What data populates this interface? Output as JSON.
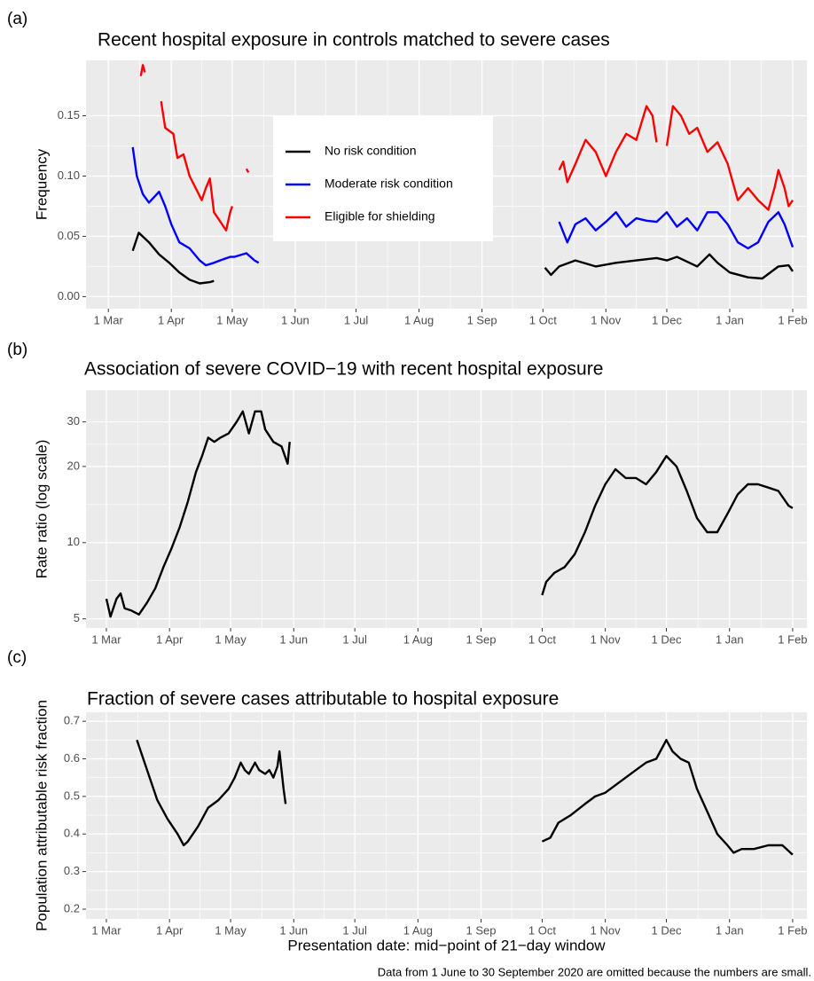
{
  "chart_data": [
    {
      "type": "line",
      "label": "(a)",
      "title": "Recent hospital exposure in controls matched to severe cases",
      "ylabel": "Frequency",
      "xlim": [
        -11,
        344
      ],
      "ylim": [
        -0.01,
        0.196
      ],
      "xticks": [
        {
          "value": 0,
          "label": "1 Mar"
        },
        {
          "value": 31,
          "label": "1 Apr"
        },
        {
          "value": 61,
          "label": "1 May"
        },
        {
          "value": 92,
          "label": "1 Jun"
        },
        {
          "value": 122,
          "label": "1 Jul"
        },
        {
          "value": 153,
          "label": "1 Aug"
        },
        {
          "value": 184,
          "label": "1 Sep"
        },
        {
          "value": 214,
          "label": "1 Oct"
        },
        {
          "value": 245,
          "label": "1 Nov"
        },
        {
          "value": 275,
          "label": "1 Dec"
        },
        {
          "value": 306,
          "label": "1 Jan"
        },
        {
          "value": 337,
          "label": "1 Feb"
        }
      ],
      "yticks": [
        {
          "value": 0,
          "label": "0.00"
        },
        {
          "value": 0.05,
          "label": "0.05"
        },
        {
          "value": 0.1,
          "label": "0.10"
        },
        {
          "value": 0.15,
          "label": "0.15"
        }
      ],
      "grid": true,
      "legend": "inside",
      "series": [
        {
          "name": "No risk condition",
          "color": "#000000",
          "x": [
            12,
            15,
            20,
            25,
            30,
            35,
            40,
            45,
            50,
            52,
            130,
            215,
            218,
            222,
            230,
            240,
            250,
            260,
            270,
            275,
            280,
            290,
            296,
            300,
            306,
            315,
            322,
            330,
            335,
            337
          ],
          "values": [
            0.038,
            0.053,
            0.045,
            0.035,
            0.028,
            0.02,
            0.014,
            0.011,
            0.012,
            0.013,
            null,
            0.024,
            0.018,
            0.025,
            0.03,
            0.025,
            0.028,
            0.03,
            0.032,
            0.03,
            0.033,
            0.025,
            0.035,
            0.028,
            0.02,
            0.016,
            0.015,
            0.025,
            0.026,
            0.021
          ]
        },
        {
          "name": "Moderate risk condition",
          "color": "#0000ff",
          "x": [
            12,
            14,
            17,
            20,
            25,
            28,
            31,
            35,
            40,
            45,
            48,
            52,
            55,
            60,
            62,
            68,
            72,
            74,
            150,
            222,
            226,
            230,
            235,
            240,
            245,
            250,
            255,
            260,
            265,
            270,
            275,
            280,
            285,
            290,
            295,
            300,
            305,
            310,
            315,
            320,
            325,
            330,
            333,
            337
          ],
          "values": [
            0.124,
            0.1,
            0.085,
            0.078,
            0.087,
            0.075,
            0.06,
            0.045,
            0.04,
            0.03,
            0.026,
            0.028,
            0.03,
            0.033,
            0.033,
            0.036,
            0.03,
            0.028,
            null,
            0.062,
            0.045,
            0.06,
            0.065,
            0.055,
            0.062,
            0.07,
            0.058,
            0.065,
            0.063,
            0.062,
            0.07,
            0.058,
            0.065,
            0.055,
            0.07,
            0.07,
            0.06,
            0.045,
            0.04,
            0.045,
            0.062,
            0.07,
            0.06,
            0.041
          ]
        },
        {
          "name": "Eligible for shielding",
          "color": "#ff0000",
          "x": [
            16,
            17,
            18,
            22,
            26,
            28,
            32,
            34,
            37,
            40,
            43,
            46,
            48,
            50,
            52,
            54,
            56,
            58,
            60,
            61,
            65,
            68,
            69,
            150,
            222,
            224,
            226,
            230,
            235,
            240,
            245,
            250,
            255,
            260,
            265,
            268,
            270,
            272,
            275,
            278,
            282,
            286,
            290,
            295,
            300,
            305,
            310,
            315,
            320,
            325,
            328,
            330,
            333,
            335,
            337
          ],
          "values": [
            0.183,
            0.192,
            0.186,
            null,
            0.162,
            0.14,
            0.135,
            0.115,
            0.118,
            0.1,
            0.09,
            0.08,
            0.09,
            0.098,
            0.07,
            0.065,
            0.06,
            0.055,
            0.07,
            0.075,
            null,
            0.106,
            0.103,
            null,
            0.105,
            0.112,
            0.095,
            0.11,
            0.13,
            0.12,
            0.1,
            0.12,
            0.135,
            0.13,
            0.158,
            0.15,
            0.128,
            null,
            0.125,
            0.158,
            0.15,
            0.135,
            0.14,
            0.12,
            0.128,
            0.11,
            0.08,
            0.09,
            0.08,
            0.072,
            0.09,
            0.105,
            0.09,
            0.075,
            0.08
          ]
        }
      ]
    },
    {
      "type": "line",
      "label": "(b)",
      "title": "Association of severe COVID−19 with recent hospital exposure",
      "ylabel": "Rate ratio (log scale)",
      "xlim": [
        -10,
        344
      ],
      "ylim": [
        4.6,
        40
      ],
      "ylog": true,
      "xticks": [
        {
          "value": 0,
          "label": "1 Mar"
        },
        {
          "value": 31,
          "label": "1 Apr"
        },
        {
          "value": 61,
          "label": "1 May"
        },
        {
          "value": 92,
          "label": "1 Jun"
        },
        {
          "value": 122,
          "label": "1 Jul"
        },
        {
          "value": 153,
          "label": "1 Aug"
        },
        {
          "value": 184,
          "label": "1 Sep"
        },
        {
          "value": 214,
          "label": "1 Oct"
        },
        {
          "value": 245,
          "label": "1 Nov"
        },
        {
          "value": 275,
          "label": "1 Dec"
        },
        {
          "value": 306,
          "label": "1 Jan"
        },
        {
          "value": 337,
          "label": "1 Feb"
        }
      ],
      "yticks": [
        5,
        10,
        20,
        30
      ],
      "grid": true,
      "color": "#000000",
      "x": [
        0,
        2,
        5,
        7,
        9,
        12,
        16,
        20,
        24,
        28,
        32,
        36,
        40,
        44,
        47,
        50,
        53,
        56,
        60,
        64,
        67,
        70,
        73,
        76,
        78,
        82,
        86,
        89,
        90,
        150,
        214,
        216,
        220,
        225,
        230,
        235,
        240,
        245,
        250,
        255,
        260,
        265,
        270,
        275,
        280,
        285,
        290,
        295,
        300,
        305,
        310,
        315,
        320,
        325,
        330,
        335,
        337
      ],
      "values": [
        6.0,
        5.1,
        6.0,
        6.3,
        5.5,
        5.4,
        5.2,
        5.8,
        6.6,
        8,
        9.5,
        11.5,
        14.5,
        19,
        22,
        26,
        25,
        26,
        27,
        30,
        33,
        27,
        33,
        33,
        28,
        25,
        24,
        20.5,
        25,
        null,
        6.2,
        7.0,
        7.6,
        8.0,
        9,
        11,
        14,
        17,
        19.5,
        18,
        18,
        17,
        19,
        22,
        20,
        16,
        12.5,
        11,
        11,
        13,
        15.5,
        17,
        17,
        16.5,
        16,
        14,
        13.7
      ]
    },
    {
      "type": "line",
      "label": "(c)",
      "title": "Fraction of severe cases attributable to hospital exposure",
      "ylabel": "Population attributable risk fraction",
      "xlabel": "Presentation date: mid−point of 21−day window",
      "note": "Data from 1 June to 30 September 2020 are omitted because the numbers are small.",
      "xlim": [
        -10,
        344
      ],
      "ylim": [
        0.174,
        0.724
      ],
      "xticks": [
        {
          "value": 0,
          "label": "1 Mar"
        },
        {
          "value": 31,
          "label": "1 Apr"
        },
        {
          "value": 61,
          "label": "1 May"
        },
        {
          "value": 92,
          "label": "1 Jun"
        },
        {
          "value": 122,
          "label": "1 Jul"
        },
        {
          "value": 153,
          "label": "1 Aug"
        },
        {
          "value": 184,
          "label": "1 Sep"
        },
        {
          "value": 214,
          "label": "1 Oct"
        },
        {
          "value": 245,
          "label": "1 Nov"
        },
        {
          "value": 275,
          "label": "1 Dec"
        },
        {
          "value": 306,
          "label": "1 Jan"
        },
        {
          "value": 337,
          "label": "1 Feb"
        }
      ],
      "yticks": [
        0.2,
        0.3,
        0.4,
        0.5,
        0.6,
        0.7
      ],
      "grid": true,
      "color": "#000000",
      "x": [
        15,
        20,
        25,
        30,
        35,
        38,
        40,
        45,
        50,
        55,
        60,
        63,
        66,
        68,
        70,
        73,
        75,
        78,
        80,
        82,
        84,
        85,
        87,
        88,
        150,
        214,
        218,
        222,
        228,
        235,
        240,
        245,
        250,
        255,
        260,
        265,
        270,
        275,
        278,
        282,
        286,
        290,
        295,
        300,
        305,
        308,
        312,
        318,
        325,
        332,
        337
      ],
      "values": [
        0.65,
        0.57,
        0.49,
        0.44,
        0.4,
        0.37,
        0.38,
        0.42,
        0.47,
        0.49,
        0.52,
        0.55,
        0.59,
        0.57,
        0.56,
        0.59,
        0.57,
        0.56,
        0.57,
        0.55,
        0.58,
        0.62,
        0.52,
        0.48,
        null,
        0.38,
        0.39,
        0.43,
        0.45,
        0.48,
        0.5,
        0.51,
        0.53,
        0.55,
        0.57,
        0.59,
        0.6,
        0.65,
        0.62,
        0.6,
        0.59,
        0.52,
        0.46,
        0.4,
        0.37,
        0.35,
        0.36,
        0.36,
        0.37,
        0.37,
        0.345
      ]
    }
  ]
}
